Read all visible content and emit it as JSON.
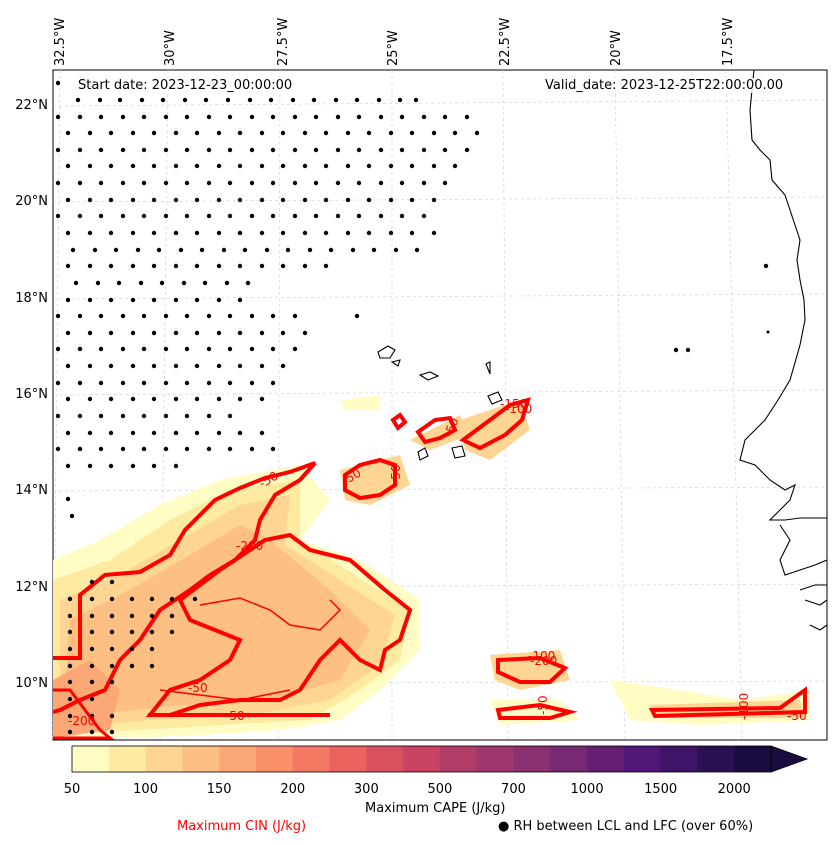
{
  "map": {
    "start_date": "Start date: 2023-12-23_00:00:00",
    "valid_date": "Valid_date: 2023-12-25T22:00:00.00",
    "lon_labels": [
      "32.5°W",
      "30°W",
      "27.5°W",
      "25°W",
      "22.5°W",
      "20°W",
      "17.5°W"
    ],
    "lat_labels": [
      "22°N",
      "20°N",
      "18°N",
      "16°N",
      "14°N",
      "12°N",
      "10°N"
    ],
    "cin_contour_labels": [
      "-50",
      "-50",
      "-50",
      "-50",
      "-150",
      "-100",
      "-100",
      "-200",
      "-50",
      "-100",
      "-200",
      "-50",
      "-50",
      "-200",
      "-50"
    ]
  },
  "colorbar": {
    "ticks": [
      "50",
      "100",
      "150",
      "200",
      "300",
      "500",
      "700",
      "1000",
      "1500",
      "2000"
    ],
    "colors": [
      "#fffdc4",
      "#feeaa0",
      "#fed592",
      "#fdbf82",
      "#fca876",
      "#fa906a",
      "#f47962",
      "#ea635f",
      "#d9505f",
      "#c84462",
      "#b13c68",
      "#9d376e",
      "#8a3070",
      "#772a71",
      "#641f73",
      "#511677",
      "#3e1368",
      "#2b1052",
      "#1b0c3f"
    ],
    "label": "Maximum CAPE (J/kg)"
  },
  "legend": {
    "cin_label": "Maximum CIN (J/kg)",
    "cin_color": "#ff0000",
    "rh_label": "● RH between LCL and LFC (over 60%)"
  }
}
